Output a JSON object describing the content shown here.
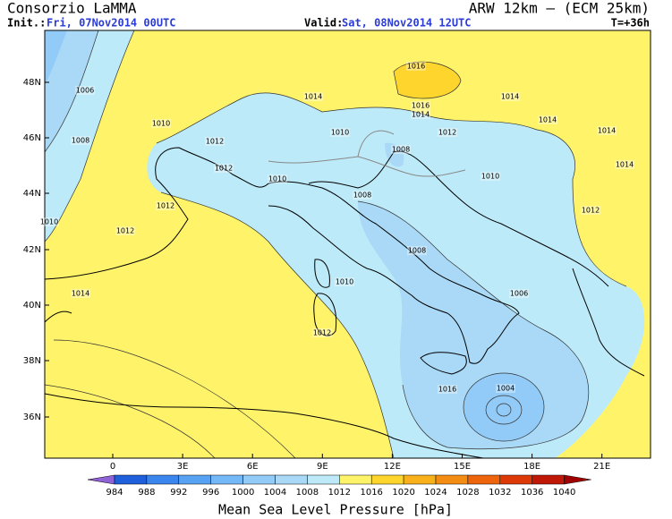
{
  "header": {
    "title": "Consorzio LaMMA",
    "model": "ARW 12km – (ECM 25km)",
    "init_label": "Init.:",
    "init": "Fri, 07Nov2014 00UTC",
    "valid_label": "Valid:",
    "valid": "Sat, 08Nov2014 12UTC",
    "lead": "T=+36h"
  },
  "map": {
    "lat_labels": [
      "48N",
      "46N",
      "44N",
      "42N",
      "40N",
      "38N",
      "36N"
    ],
    "lon_labels": [
      "0",
      "3E",
      "6E",
      "9E",
      "12E",
      "15E",
      "18E",
      "21E"
    ],
    "contour_labels": [
      "1006",
      "1008",
      "1010",
      "1012",
      "1012",
      "1010",
      "1012",
      "1014",
      "1014",
      "1016",
      "1016",
      "1014",
      "1012",
      "1014",
      "1014",
      "1010",
      "1008",
      "1008",
      "1008",
      "1006",
      "1004",
      "1010",
      "1012",
      "1014",
      "1016",
      "1012",
      "1010",
      "1012",
      "1010",
      "1014"
    ]
  },
  "colorbar": {
    "title": "Mean Sea Level Pressure [hPa]",
    "levels": [
      984,
      988,
      992,
      996,
      1000,
      1004,
      1008,
      1012,
      1016,
      1020,
      1024,
      1028,
      1032,
      1036,
      1040
    ],
    "colors": [
      "#8f63d6",
      "#1f5fdc",
      "#3a85ee",
      "#58a2f4",
      "#74b8f7",
      "#92cbf8",
      "#a9d9f6",
      "#bdeaf8",
      "#fff36a",
      "#fdd52c",
      "#f8b11a",
      "#f48c14",
      "#ee640c",
      "#dc3808",
      "#c01806",
      "#a00000"
    ]
  }
}
